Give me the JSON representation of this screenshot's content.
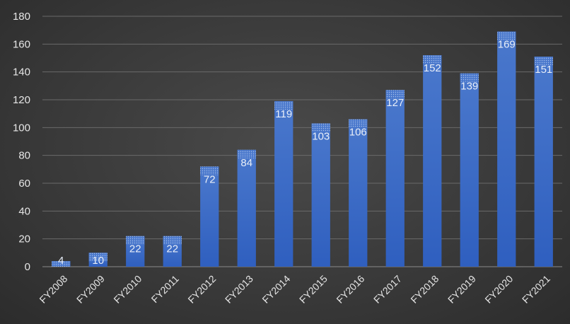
{
  "chart_data": {
    "type": "bar",
    "title": "",
    "xlabel": "",
    "ylabel": "",
    "categories": [
      "FY2008",
      "FY2009",
      "FY2010",
      "FY2011",
      "FY2012",
      "FY2013",
      "FY2014",
      "FY2015",
      "FY2016",
      "FY2017",
      "FY2018",
      "FY2019",
      "FY2020",
      "FY2021"
    ],
    "values": [
      4,
      10,
      22,
      22,
      72,
      84,
      119,
      103,
      106,
      127,
      152,
      139,
      169,
      151
    ],
    "data_labels": [
      "4",
      "10",
      "22",
      "22",
      "72",
      "84",
      "119",
      "103",
      "106",
      "127",
      "152",
      "139",
      "169",
      "151"
    ],
    "ylim": [
      0,
      180
    ],
    "yticks": [
      0,
      20,
      40,
      60,
      80,
      100,
      120,
      140,
      160,
      180
    ],
    "ytick_labels": [
      "0",
      "20",
      "40",
      "60",
      "80",
      "100",
      "120",
      "140",
      "160",
      "180"
    ],
    "grid": true,
    "legend": "none",
    "colors": {
      "bar_top": "#4472c4",
      "bar_bottom": "#2f5db7",
      "bar_cap": "#6f95d8",
      "label": "#e8eef8"
    }
  }
}
